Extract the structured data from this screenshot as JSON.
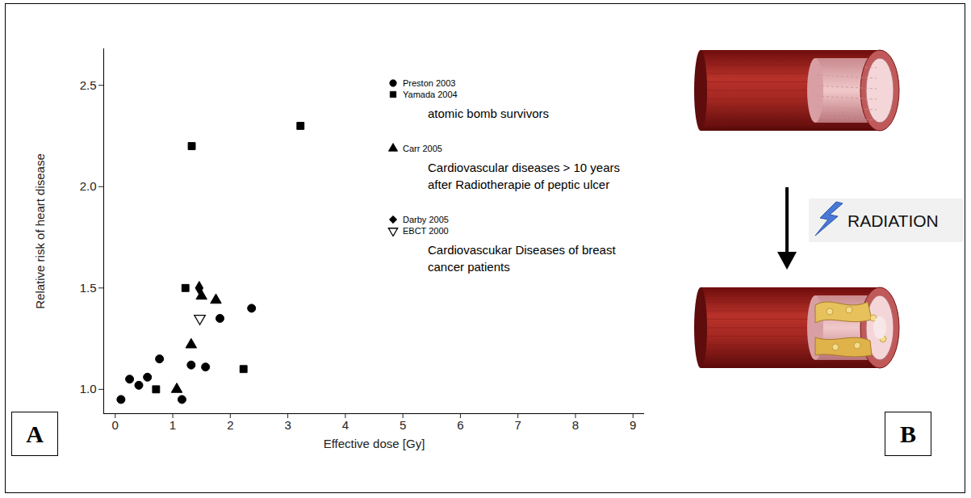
{
  "chart_data": {
    "type": "scatter",
    "xlabel": "Effective dose [Gy]",
    "ylabel": "Relative risk of heart disease",
    "xlim": [
      -0.2,
      9.2
    ],
    "ylim": [
      0.88,
      2.68
    ],
    "xticks": [
      0,
      1,
      2,
      3,
      4,
      5,
      6,
      7,
      8,
      9
    ],
    "yticks": [
      {
        "value": 1,
        "label": "1.0"
      },
      {
        "value": 1.5,
        "label": "1.5"
      },
      {
        "value": 2,
        "label": "2.0"
      },
      {
        "value": 2.5,
        "label": "2.5"
      }
    ],
    "legend": "top-right",
    "series": [
      {
        "name": "Preston 2003",
        "marker": "circle",
        "color": "#000000",
        "x": [
          0.1,
          0.25,
          0.41,
          0.56,
          0.77,
          1.16,
          1.32,
          1.57,
          1.82,
          2.37
        ],
        "values": [
          0.95,
          1.05,
          1.02,
          1.06,
          1.15,
          0.95,
          1.12,
          1.11,
          1.35,
          1.4
        ]
      },
      {
        "name": "Yamada 2004",
        "marker": "square",
        "color": "#000000",
        "x": [
          0.71,
          1.22,
          1.33,
          2.23,
          3.22
        ],
        "values": [
          1.0,
          1.5,
          2.2,
          1.1,
          2.3
        ]
      },
      {
        "name": "Carr  2005",
        "marker": "triangle",
        "color": "#000000",
        "x": [
          1.07,
          1.32,
          1.5,
          1.75
        ],
        "values": [
          1.0,
          1.22,
          1.46,
          1.44
        ]
      },
      {
        "name": "Darby  2005",
        "marker": "diamond",
        "color": "#000000",
        "x": [
          1.46
        ],
        "values": [
          1.5
        ]
      },
      {
        "name": "EBCT  2000",
        "marker": "open-triangle-down",
        "color": "#000000",
        "x": [
          1.47
        ],
        "values": [
          1.35
        ]
      }
    ],
    "annotations": [
      "atomic bomb survivors",
      "Cardiovascular diseases > 10 years after Radiotherapie of peptic ulcer",
      "Cardiovascukar Diseases of breast cancer patients"
    ]
  },
  "panels": {
    "labels": [
      "A",
      "B"
    ],
    "diagram": {
      "label": "RADIATION"
    }
  }
}
